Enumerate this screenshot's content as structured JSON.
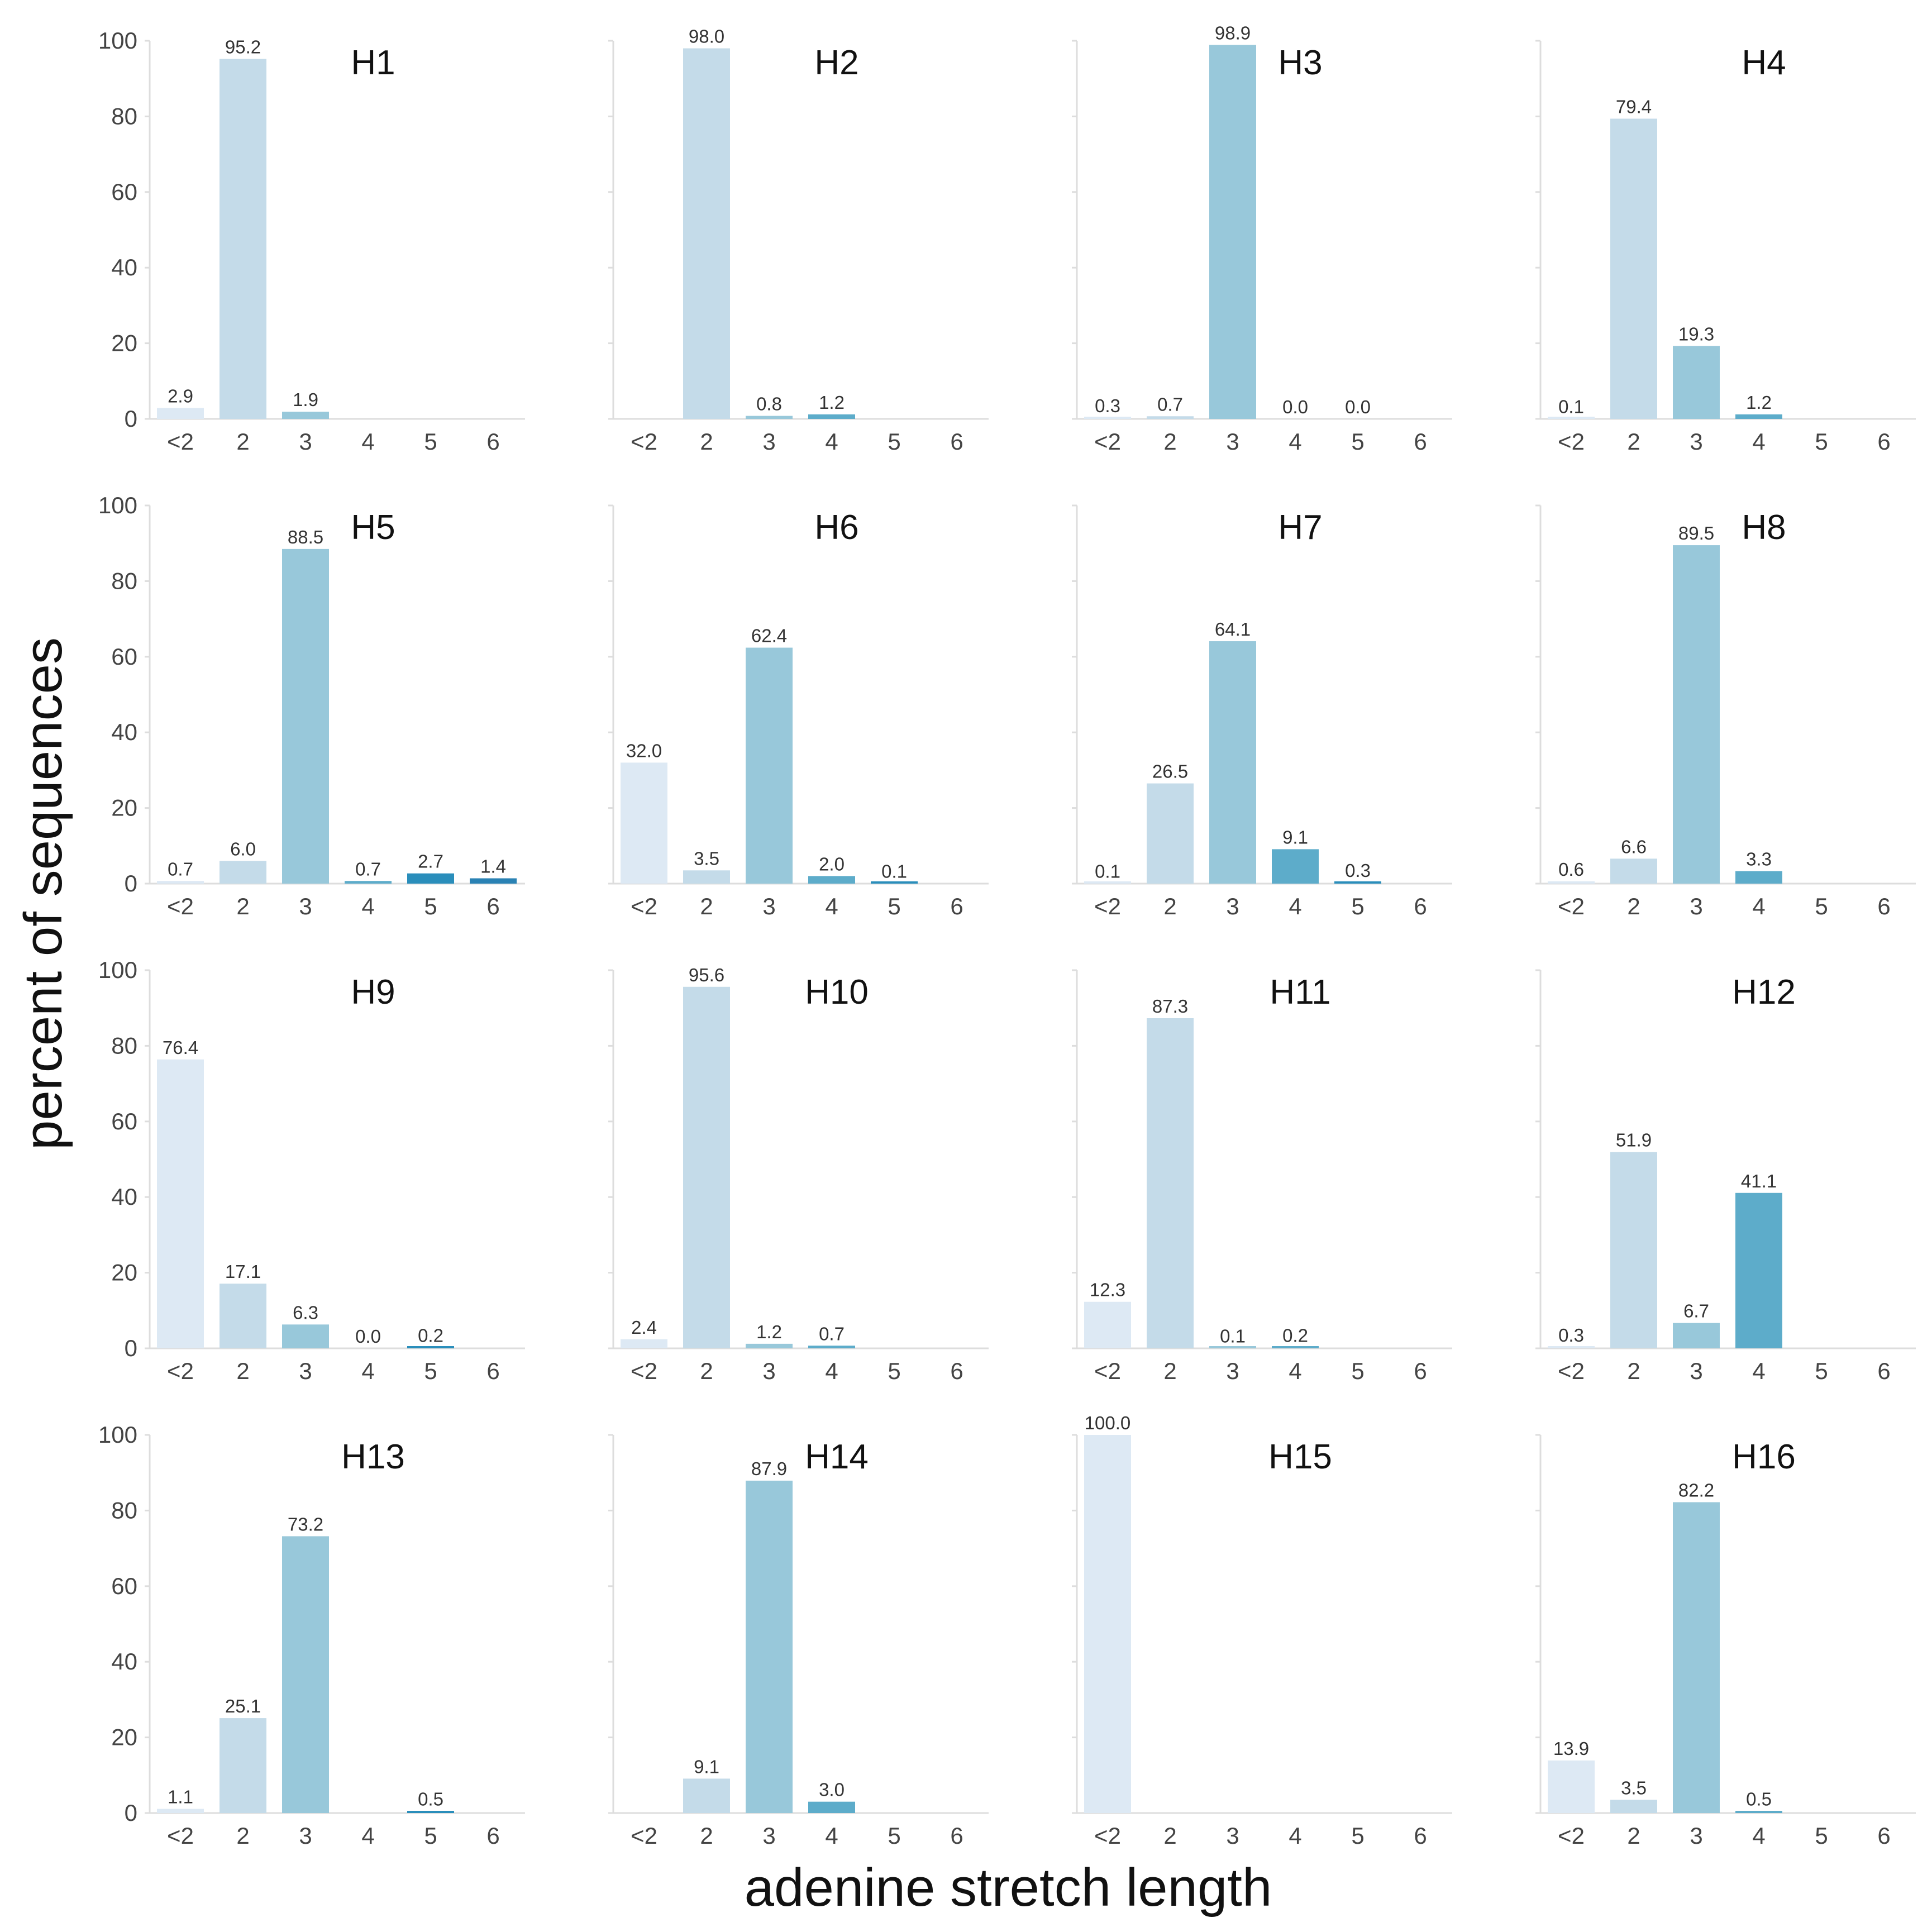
{
  "colors": {
    "lt2": "#dde9f4",
    "c2": "#c4dbe9",
    "c3": "#98c8da",
    "c4": "#5dacca",
    "c5": "#2a8ebb",
    "c6": "#2a82b4",
    "axis": "#dddddd"
  },
  "chart_data": {
    "type": "bar",
    "layout": "4x4 small multiples",
    "xlabel": "adenine stretch length",
    "ylabel": "percent of sequences",
    "categories": [
      "<2",
      "2",
      "3",
      "4",
      "5",
      "6"
    ],
    "yticks": [
      "0",
      "20",
      "40",
      "60",
      "80",
      "100"
    ],
    "ylim": [
      0,
      100
    ],
    "panels": [
      {
        "title": "H1",
        "values": [
          2.9,
          95.2,
          1.9,
          null,
          null,
          null
        ],
        "labels": [
          "2.9",
          "95.2",
          "1.9",
          "",
          "",
          ""
        ]
      },
      {
        "title": "H2",
        "values": [
          null,
          98.0,
          0.8,
          1.2,
          null,
          null
        ],
        "labels": [
          "",
          "98.0",
          "0.8",
          "1.2",
          "",
          ""
        ]
      },
      {
        "title": "H3",
        "values": [
          0.3,
          0.7,
          98.9,
          0.0,
          0.0,
          null
        ],
        "labels": [
          "0.3",
          "0.7",
          "98.9",
          "0.0",
          "0.0",
          ""
        ]
      },
      {
        "title": "H4",
        "values": [
          0.1,
          79.4,
          19.3,
          1.2,
          null,
          null
        ],
        "labels": [
          "0.1",
          "79.4",
          "19.3",
          "1.2",
          "",
          ""
        ]
      },
      {
        "title": "H5",
        "values": [
          0.7,
          6.0,
          88.5,
          0.7,
          2.7,
          1.4
        ],
        "labels": [
          "0.7",
          "6.0",
          "88.5",
          "0.7",
          "2.7",
          "1.4"
        ]
      },
      {
        "title": "H6",
        "values": [
          32.0,
          3.5,
          62.4,
          2.0,
          0.1,
          null
        ],
        "labels": [
          "32.0",
          "3.5",
          "62.4",
          "2.0",
          "0.1",
          ""
        ]
      },
      {
        "title": "H7",
        "values": [
          0.1,
          26.5,
          64.1,
          9.1,
          0.3,
          null
        ],
        "labels": [
          "0.1",
          "26.5",
          "64.1",
          "9.1",
          "0.3",
          ""
        ]
      },
      {
        "title": "H8",
        "values": [
          0.6,
          6.6,
          89.5,
          3.3,
          null,
          null
        ],
        "labels": [
          "0.6",
          "6.6",
          "89.5",
          "3.3",
          "",
          ""
        ]
      },
      {
        "title": "H9",
        "values": [
          76.4,
          17.1,
          6.3,
          0.0,
          0.2,
          null
        ],
        "labels": [
          "76.4",
          "17.1",
          "6.3",
          "0.0",
          "0.2",
          ""
        ]
      },
      {
        "title": "H10",
        "values": [
          2.4,
          95.6,
          1.2,
          0.7,
          null,
          null
        ],
        "labels": [
          "2.4",
          "95.6",
          "1.2",
          "0.7",
          "",
          ""
        ]
      },
      {
        "title": "H11",
        "values": [
          12.3,
          87.3,
          0.1,
          0.2,
          null,
          null
        ],
        "labels": [
          "12.3",
          "87.3",
          "0.1",
          "0.2",
          "",
          ""
        ]
      },
      {
        "title": "H12",
        "values": [
          0.3,
          51.9,
          6.7,
          41.1,
          null,
          null
        ],
        "labels": [
          "0.3",
          "51.9",
          "6.7",
          "41.1",
          "",
          ""
        ]
      },
      {
        "title": "H13",
        "values": [
          1.1,
          25.1,
          73.2,
          null,
          0.5,
          null
        ],
        "labels": [
          "1.1",
          "25.1",
          "73.2",
          "",
          "0.5",
          ""
        ]
      },
      {
        "title": "H14",
        "values": [
          null,
          9.1,
          87.9,
          3.0,
          null,
          null
        ],
        "labels": [
          "",
          "9.1",
          "87.9",
          "3.0",
          "",
          ""
        ]
      },
      {
        "title": "H15",
        "values": [
          100.0,
          null,
          null,
          null,
          null,
          null
        ],
        "labels": [
          "100.0",
          "",
          "",
          "",
          "",
          ""
        ]
      },
      {
        "title": "H16",
        "values": [
          13.9,
          3.5,
          82.2,
          0.5,
          null,
          null
        ],
        "labels": [
          "13.9",
          "3.5",
          "82.2",
          "0.5",
          "",
          ""
        ]
      }
    ]
  }
}
